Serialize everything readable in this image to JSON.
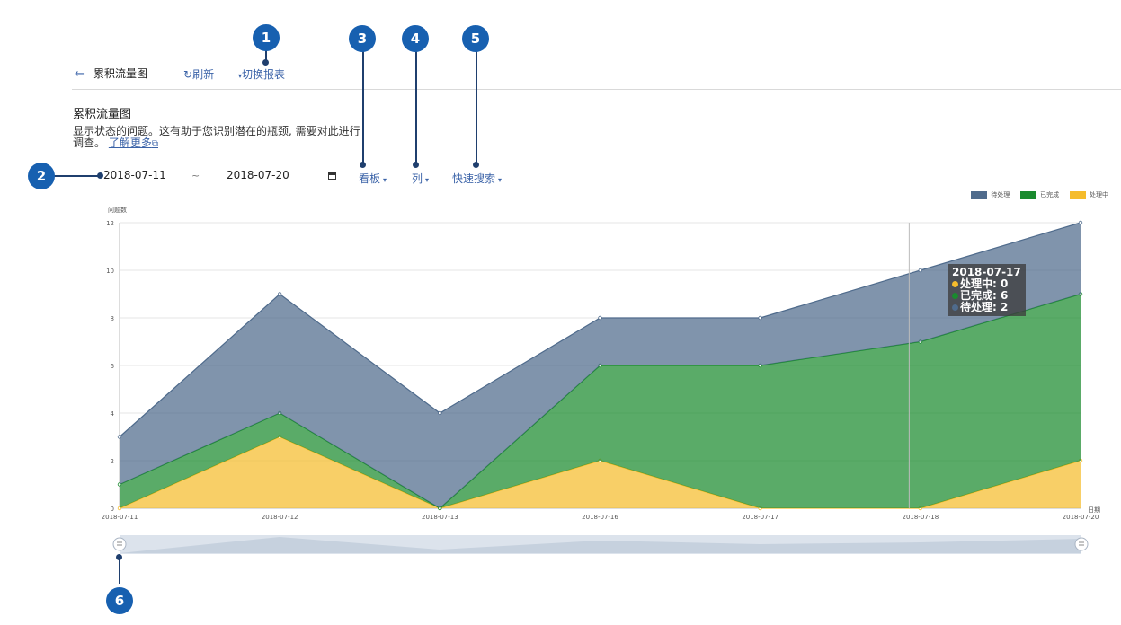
{
  "header": {
    "back_icon": "arrow-left-icon",
    "title": "累积流量图",
    "refresh_label": "刷新",
    "refresh_icon": "refresh-icon",
    "switch_label": "切换报表"
  },
  "section": {
    "heading": "累积流量图",
    "description": "显示状态的问题。这有助于您识别潜在的瓶颈, 需要对此进行调查。",
    "learn_more": "了解更多"
  },
  "filters": {
    "start_date": "2018-07-11",
    "separator": "~",
    "end_date": "2018-07-20",
    "calendar_icon": "calendar-icon",
    "board_label": "看板",
    "column_label": "列",
    "quick_search_label": "快速搜索"
  },
  "annotations": [
    "1",
    "2",
    "3",
    "4",
    "5",
    "6"
  ],
  "tooltip": {
    "date": "2018-07-17",
    "rows": [
      {
        "label": "处理中: 0",
        "color": "#f5bc2c"
      },
      {
        "label": "已完成: 6",
        "color": "#1a8a2e"
      },
      {
        "label": "待处理: 2",
        "color": "#4f6b8c"
      }
    ]
  },
  "chart_data": {
    "type": "area",
    "stacked": true,
    "categories": [
      "2018-07-11",
      "2018-07-12",
      "2018-07-13",
      "2018-07-16",
      "2018-07-17",
      "2018-07-18",
      "2018-07-20"
    ],
    "series": [
      {
        "name": "处理中",
        "color": "#f5bc2c",
        "values": [
          0,
          3,
          0,
          2,
          0,
          0,
          2
        ]
      },
      {
        "name": "已完成",
        "color": "#1a8a2e",
        "values": [
          1,
          1,
          0,
          4,
          6,
          7,
          7
        ]
      },
      {
        "name": "待处理",
        "color": "#4f6b8c",
        "values": [
          2,
          5,
          4,
          2,
          2,
          3,
          3
        ]
      }
    ],
    "legend": [
      "待处理",
      "已完成",
      "处理中"
    ],
    "legend_placement": "top-right",
    "ylabel": "问题数",
    "xlabel": "日期",
    "ylim": [
      0,
      12
    ],
    "yticks": [
      0,
      2,
      4,
      6,
      8,
      10,
      12
    ],
    "grid": true
  }
}
